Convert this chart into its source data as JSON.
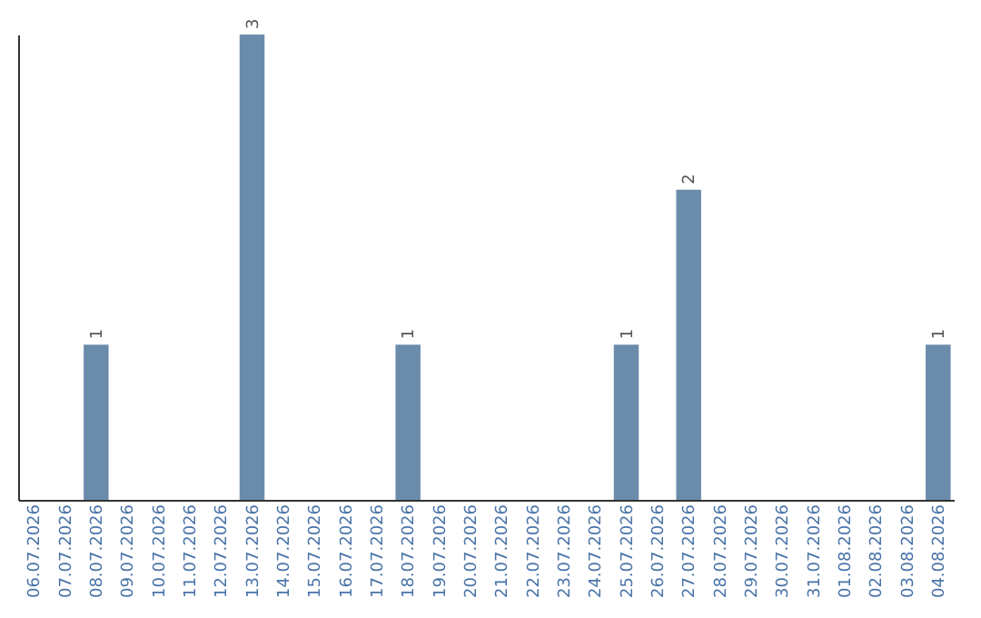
{
  "chart_data": {
    "type": "bar",
    "categories": [
      "06.07.2026",
      "07.07.2026",
      "08.07.2026",
      "09.07.2026",
      "10.07.2026",
      "11.07.2026",
      "12.07.2026",
      "13.07.2026",
      "14.07.2026",
      "15.07.2026",
      "16.07.2026",
      "17.07.2026",
      "18.07.2026",
      "19.07.2026",
      "20.07.2026",
      "21.07.2026",
      "22.07.2026",
      "23.07.2026",
      "24.07.2026",
      "25.07.2026",
      "26.07.2026",
      "27.07.2026",
      "28.07.2026",
      "29.07.2026",
      "30.07.2026",
      "31.07.2026",
      "01.08.2026",
      "02.08.2026",
      "03.08.2026",
      "04.08.2026"
    ],
    "values": [
      0,
      0,
      1,
      0,
      0,
      0,
      0,
      3,
      0,
      0,
      0,
      0,
      1,
      0,
      0,
      0,
      0,
      0,
      0,
      1,
      0,
      2,
      0,
      0,
      0,
      0,
      0,
      0,
      0,
      1
    ],
    "value_labels": [
      null,
      null,
      "1",
      null,
      null,
      null,
      null,
      "3",
      null,
      null,
      null,
      null,
      "1",
      null,
      null,
      null,
      null,
      null,
      null,
      "1",
      null,
      "2",
      null,
      null,
      null,
      null,
      null,
      null,
      null,
      "1"
    ],
    "color": "#6b8bab",
    "grid": false
  }
}
